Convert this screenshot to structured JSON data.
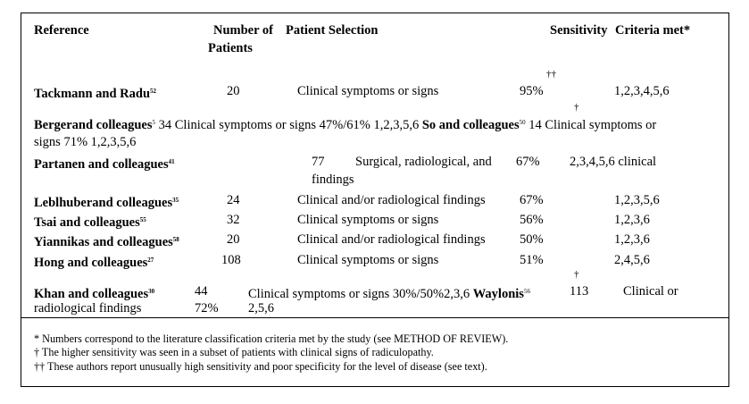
{
  "header": {
    "reference": "Reference",
    "number_of": "Number of",
    "patients": "Patients",
    "patient_selection": "Patient Selection",
    "sensitivity": "Sensitivity",
    "criteria_met": "Criteria met*"
  },
  "rows": {
    "tackmann": {
      "author": "Tackmann and Radu",
      "ref": "52",
      "n": "20",
      "selection": "Clinical symptoms or signs",
      "sens": "95%",
      "sens_mark": "††",
      "criteria": "1,2,3,4,5,6"
    },
    "merged_line1": {
      "author1": "Bergerand colleagues",
      "ref1": "5",
      "text1": "34 Clinical symptoms or signs 47%/61% 1,2,3,5,6",
      "author2": "So and colleagues",
      "ref2": "50",
      "text2": "14 Clinical symptoms or",
      "mark": "†"
    },
    "merged_line2": {
      "text": "signs 71% 1,2,3,5,6"
    },
    "partanen": {
      "author": "Partanen and colleagues",
      "ref": "41",
      "n": "77",
      "selection1": "Surgical, radiological, and",
      "selection2": "findings",
      "sens": "67%",
      "criteria": "2,3,4,5,6 clinical"
    },
    "leblhuber": {
      "author": "Leblhuberand colleagues",
      "ref": "35",
      "n": "24",
      "selection": "Clinical and/or radiological findings",
      "sens": "67%",
      "criteria": "1,2,3,5,6"
    },
    "tsai": {
      "author": "Tsai and colleagues",
      "ref": "55",
      "n": "32",
      "selection": "Clinical symptoms or signs",
      "sens": "56%",
      "criteria": "1,2,3,6"
    },
    "yiannikas": {
      "author": "Yiannikas and colleagues",
      "ref": "58",
      "n": "20",
      "selection": "Clinical and/or radiological findings",
      "sens": "50%",
      "criteria": "1,2,3,6"
    },
    "hong": {
      "author": "Hong and colleagues",
      "ref": "27",
      "n": "108",
      "selection": "Clinical symptoms or signs",
      "sens": "51%",
      "criteria": "2,4,5,6",
      "mark": "†"
    },
    "khan": {
      "author": "Khan and colleagues",
      "ref": "30",
      "n": "44",
      "text": "Clinical symptoms or signs  30%/50%2,3,6",
      "author2": "Waylonis",
      "ref2": "56",
      "n2": "113",
      "selection2": "Clinical or",
      "line2_a": "radiological findings",
      "line2_b": "72%",
      "line2_c": "2,5,6"
    }
  },
  "footnotes": {
    "f1": "* Numbers correspond to the literature classification criteria met by the study (see METHOD OF REVIEW).",
    "f2": "† The higher sensitivity was seen in a subset of patients with clinical signs of radiculopathy.",
    "f3": "†† These authors report unusually high sensitivity and poor specificity for the level of disease (see text)."
  }
}
